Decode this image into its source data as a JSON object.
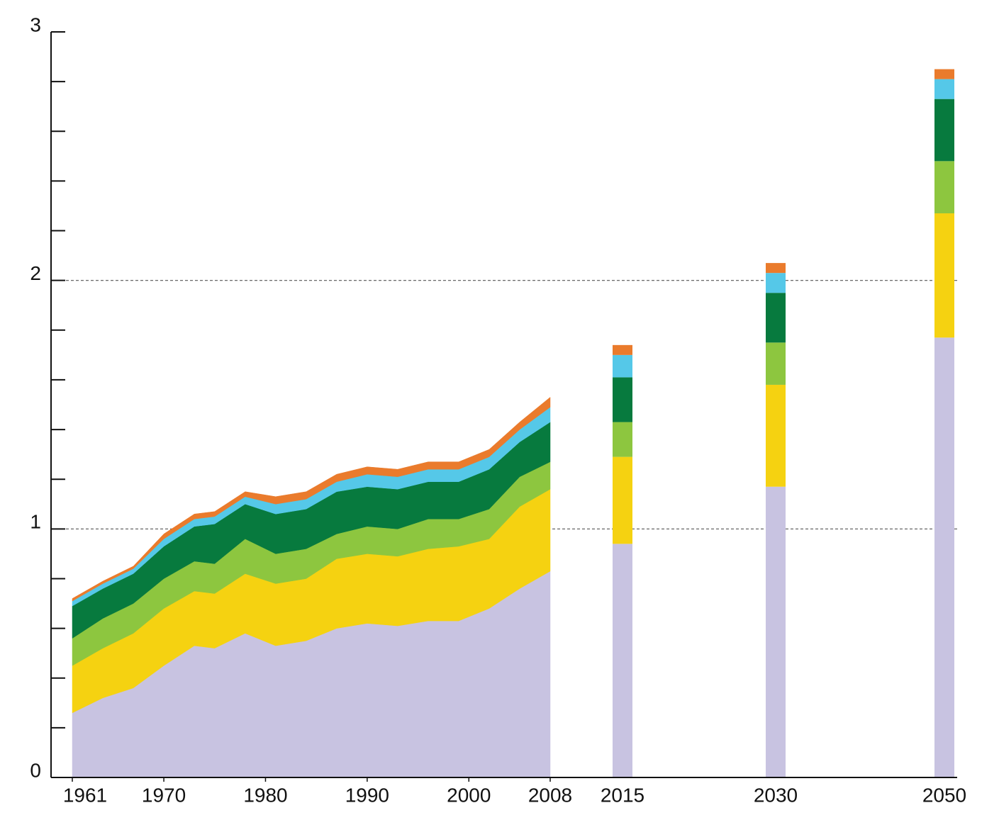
{
  "chart_data": {
    "type": "stacked_area",
    "x": [
      1961,
      1964,
      1967,
      1970,
      1973,
      1975,
      1978,
      1981,
      1984,
      1987,
      1990,
      1993,
      1996,
      1999,
      2002,
      2005,
      2008
    ],
    "xlim": [
      1961,
      2008
    ],
    "xticks": [
      1961,
      1970,
      1980,
      1990,
      2000,
      2008
    ],
    "ylim": [
      0,
      3
    ],
    "yticks": [
      0,
      1,
      2,
      3
    ],
    "yticks_minor": [
      0.2,
      0.4,
      0.6,
      0.8,
      1.2,
      1.4,
      1.6,
      1.8,
      2.2,
      2.4,
      2.6,
      2.8
    ],
    "grid_values": [
      1,
      2
    ],
    "bar_categories": [
      "2015",
      "2030",
      "2050"
    ],
    "series": [
      {
        "color": "#c8c3e1",
        "values": [
          0.26,
          0.32,
          0.36,
          0.45,
          0.53,
          0.52,
          0.58,
          0.53,
          0.55,
          0.6,
          0.62,
          0.61,
          0.63,
          0.63,
          0.68,
          0.76,
          0.83
        ],
        "bar_values": [
          0.94,
          1.17,
          1.77
        ]
      },
      {
        "color": "#f5d211",
        "values": [
          0.19,
          0.2,
          0.22,
          0.23,
          0.22,
          0.22,
          0.24,
          0.25,
          0.25,
          0.28,
          0.28,
          0.28,
          0.29,
          0.3,
          0.28,
          0.33,
          0.33
        ],
        "bar_values": [
          0.35,
          0.41,
          0.5
        ]
      },
      {
        "color": "#8dc63f",
        "values": [
          0.11,
          0.12,
          0.12,
          0.12,
          0.12,
          0.12,
          0.14,
          0.12,
          0.12,
          0.1,
          0.11,
          0.11,
          0.12,
          0.11,
          0.12,
          0.12,
          0.11
        ],
        "bar_values": [
          0.14,
          0.17,
          0.21
        ]
      },
      {
        "color": "#077a3e",
        "values": [
          0.13,
          0.12,
          0.12,
          0.13,
          0.14,
          0.16,
          0.14,
          0.16,
          0.16,
          0.17,
          0.16,
          0.16,
          0.15,
          0.15,
          0.16,
          0.14,
          0.16
        ],
        "bar_values": [
          0.18,
          0.2,
          0.25
        ]
      },
      {
        "color": "#55c8e8",
        "values": [
          0.02,
          0.02,
          0.02,
          0.03,
          0.03,
          0.03,
          0.03,
          0.04,
          0.04,
          0.04,
          0.05,
          0.05,
          0.05,
          0.05,
          0.05,
          0.05,
          0.06
        ],
        "bar_values": [
          0.09,
          0.08,
          0.08
        ]
      },
      {
        "color": "#ea7b2c",
        "values": [
          0.01,
          0.01,
          0.01,
          0.02,
          0.02,
          0.02,
          0.02,
          0.03,
          0.03,
          0.03,
          0.03,
          0.03,
          0.03,
          0.03,
          0.03,
          0.03,
          0.04
        ],
        "bar_values": [
          0.04,
          0.04,
          0.04
        ]
      }
    ]
  }
}
